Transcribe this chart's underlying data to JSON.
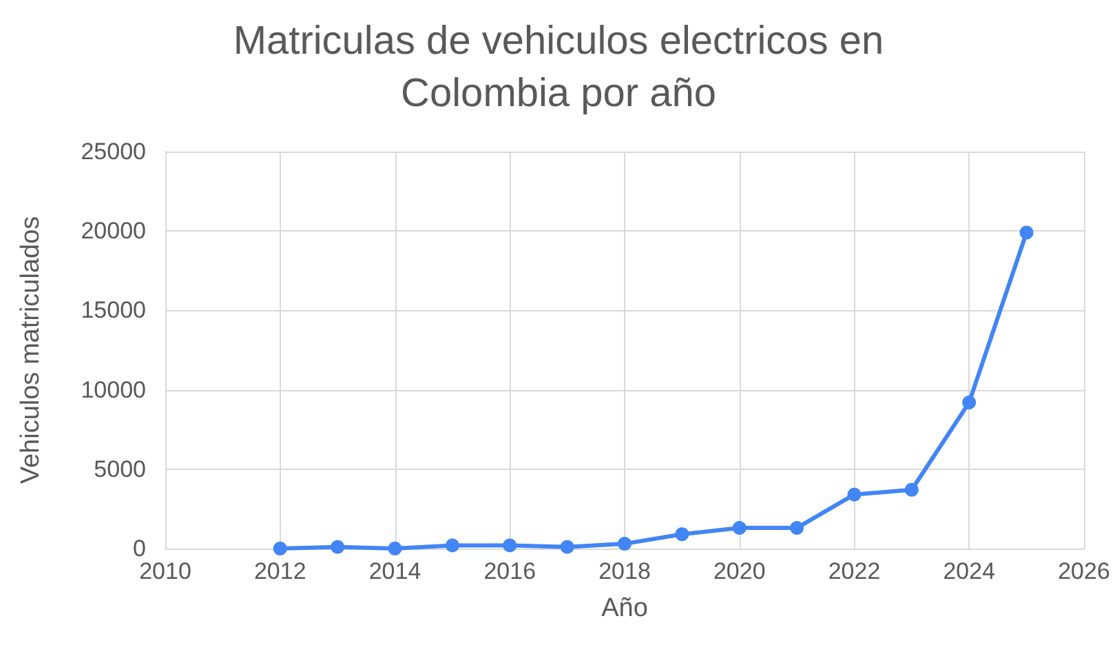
{
  "chart_data": {
    "type": "line",
    "title": "Matriculas de vehiculos electricos en\nColombia por año",
    "xlabel": "Año",
    "ylabel": "Vehiculos matriculados",
    "x": [
      2012,
      2013,
      2014,
      2015,
      2016,
      2017,
      2018,
      2019,
      2020,
      2021,
      2022,
      2023,
      2024,
      2025
    ],
    "series": [
      {
        "color": "#4285f4",
        "values": [
          0,
          100,
          0,
          200,
          200,
          100,
          300,
          900,
          1300,
          1300,
          3400,
          3700,
          9200,
          19900
        ]
      }
    ],
    "xlim": [
      2010,
      2026
    ],
    "xticks": [
      2010,
      2012,
      2014,
      2016,
      2018,
      2020,
      2022,
      2024,
      2026
    ],
    "ylim": [
      0,
      25000
    ],
    "yticks": [
      0,
      5000,
      10000,
      15000,
      20000,
      25000
    ],
    "grid": true,
    "marker": "circle",
    "line_style": "solid"
  }
}
